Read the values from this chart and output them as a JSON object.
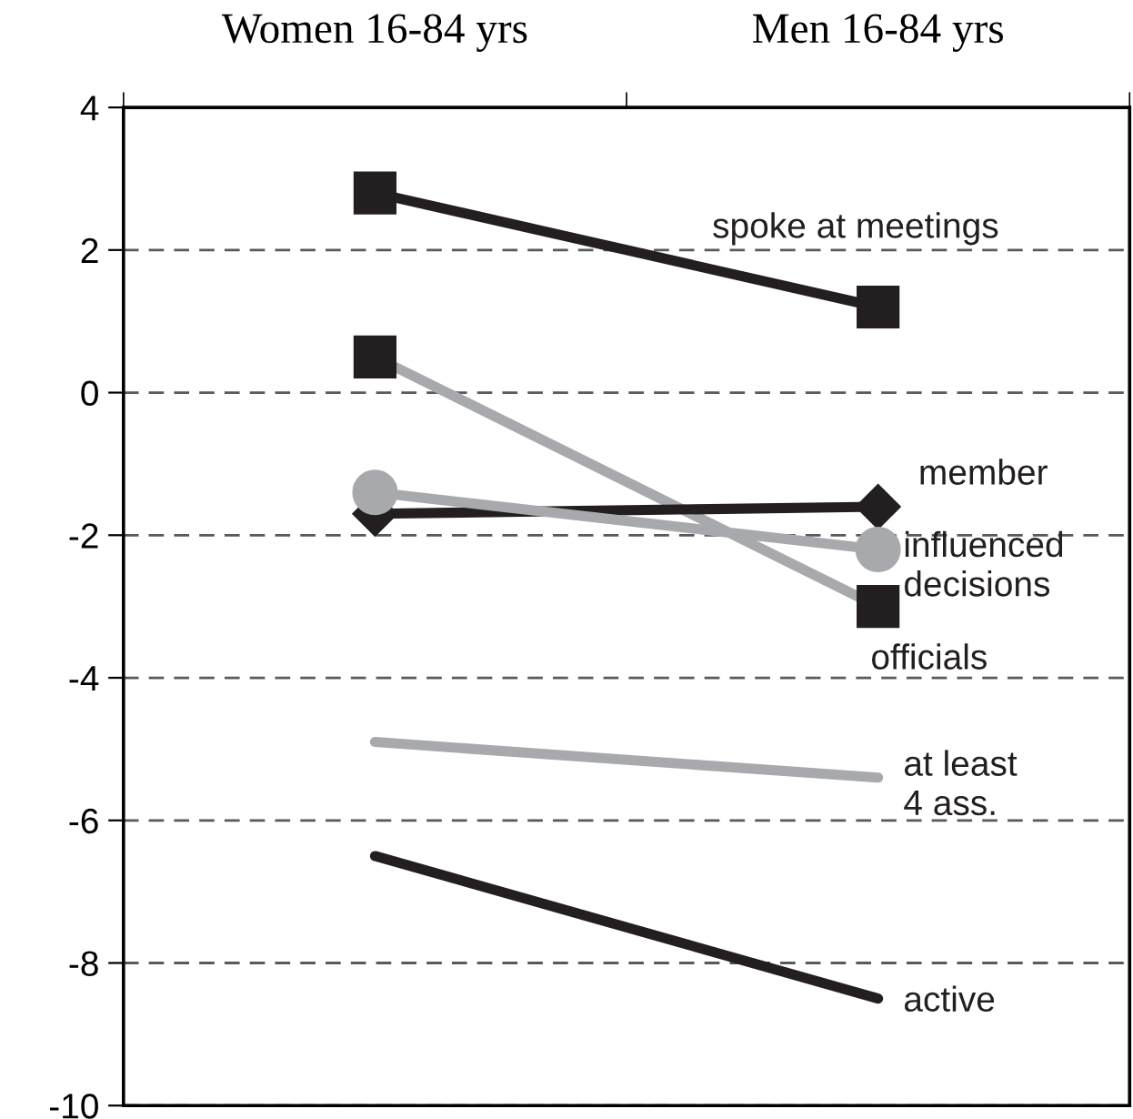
{
  "chart_data": {
    "type": "line",
    "categories": [
      "Women 16-84 yrs",
      "Men 16-84 yrs"
    ],
    "ylim": [
      -10,
      4
    ],
    "yticks": [
      -10,
      -8,
      -6,
      -4,
      -2,
      0,
      2,
      4
    ],
    "grid": "y",
    "legend": false,
    "series": [
      {
        "name": "spoke at meetings",
        "color": "#231f20",
        "marker": "square",
        "values": [
          2.8,
          1.2
        ]
      },
      {
        "name": "officials",
        "color": "#a7a9ac",
        "marker": "square",
        "values": [
          0.5,
          -3.0
        ]
      },
      {
        "name": "member",
        "color": "#231f20",
        "marker": "diamond",
        "values": [
          -1.7,
          -1.6
        ]
      },
      {
        "name": "influenced decisions",
        "color": "#a7a9ac",
        "marker": "circle",
        "values": [
          -1.4,
          -2.2
        ]
      },
      {
        "name": "at least 4 ass.",
        "color": "#a7a9ac",
        "marker": "none",
        "values": [
          -4.9,
          -5.4
        ]
      },
      {
        "name": "active",
        "color": "#231f20",
        "marker": "none",
        "values": [
          -6.5,
          -8.5
        ]
      }
    ]
  }
}
